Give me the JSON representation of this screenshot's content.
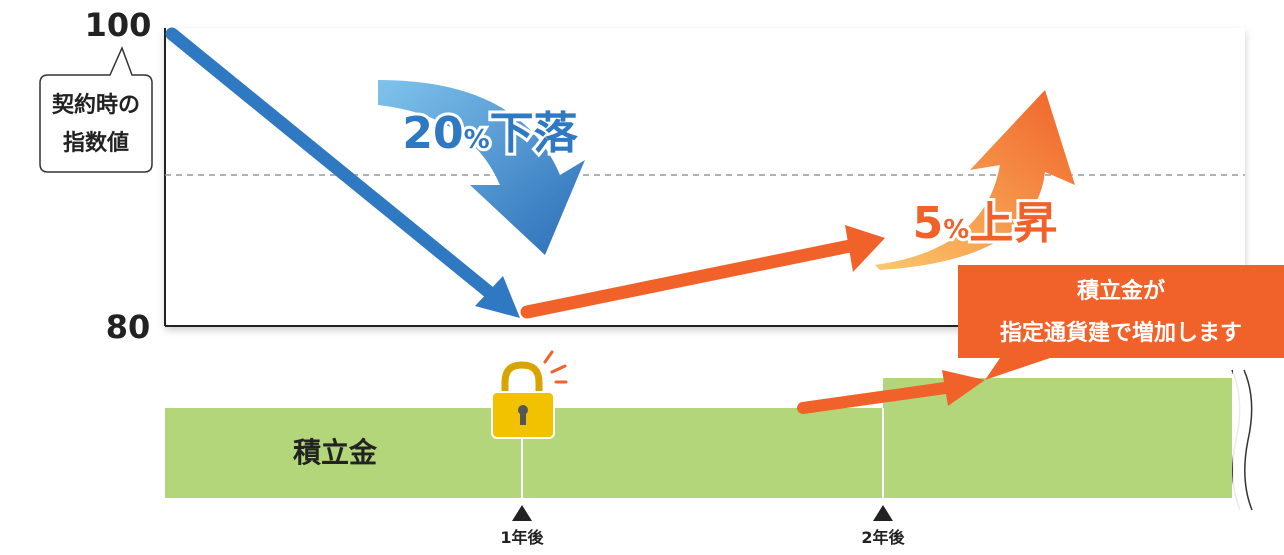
{
  "axis_labels": {
    "top": "100",
    "bottom": "80"
  },
  "callout_left": {
    "lines": [
      "契約時の",
      "指数値"
    ]
  },
  "drop_label": {
    "number": "20",
    "unit": "%",
    "text": "下落"
  },
  "rise_label": {
    "number": "5",
    "unit": "%",
    "text": "上昇"
  },
  "callout_right": {
    "lines": [
      "積立金が",
      "指定通貨建で増加します"
    ]
  },
  "fund_label": "積立金",
  "timeline": [
    "1年後",
    "2年後"
  ]
}
